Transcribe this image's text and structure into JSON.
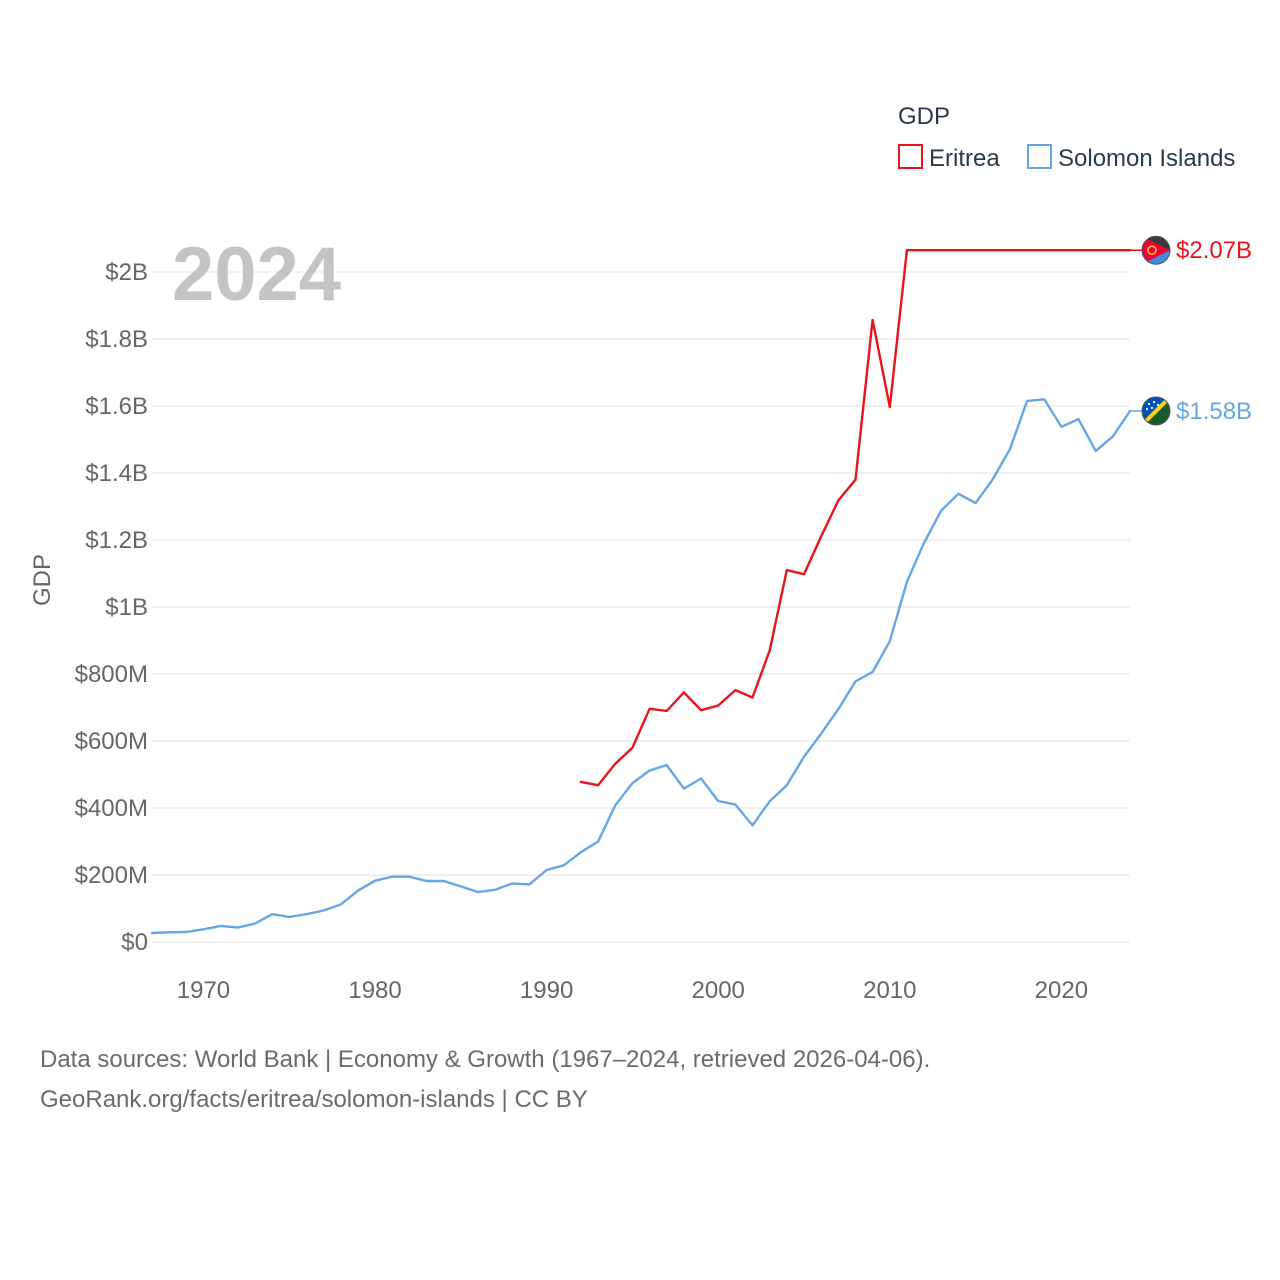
{
  "chart_data": {
    "type": "line",
    "title": "GDP",
    "year_label": "2024",
    "xlabel": "",
    "ylabel": "GDP",
    "xlim": [
      1967,
      2024
    ],
    "ylim": [
      0,
      2000000000
    ],
    "x_ticks": [
      1970,
      1980,
      1990,
      2000,
      2010,
      2020
    ],
    "x_tick_labels": [
      "1970",
      "1980",
      "1990",
      "2000",
      "2010",
      "2020"
    ],
    "y_ticks": [
      0,
      200000000,
      400000000,
      600000000,
      800000000,
      1000000000,
      1200000000,
      1400000000,
      1600000000,
      1800000000,
      2000000000
    ],
    "y_tick_labels": [
      "$0",
      "$200M",
      "$400M",
      "$600M",
      "$800M",
      "$1B",
      "$1.2B",
      "$1.4B",
      "$1.6B",
      "$1.8B",
      "$2B"
    ],
    "grid": true,
    "legend_position": "top-right",
    "series": [
      {
        "name": "Eritrea",
        "color": "#e8141b",
        "end_label": "$2.07B",
        "flag_icon": "eritrea-flag-icon",
        "x": [
          1992,
          1993,
          1994,
          1995,
          1996,
          1997,
          1998,
          1999,
          2000,
          2001,
          2002,
          2003,
          2004,
          2005,
          2006,
          2007,
          2008,
          2009,
          2010,
          2011,
          2024
        ],
        "values": [
          478000000,
          468000000,
          532000000,
          580000000,
          696000000,
          690000000,
          745000000,
          692000000,
          706000000,
          752000000,
          730000000,
          870000000,
          1110000000,
          1098000000,
          1211000000,
          1318000000,
          1380000000,
          1857000000,
          1597000000,
          2065000000,
          2065000000
        ]
      },
      {
        "name": "Solomon Islands",
        "color": "#66a6e2",
        "end_label": "$1.58B",
        "flag_icon": "solomon-islands-flag-icon",
        "x": [
          1967,
          1968,
          1969,
          1970,
          1971,
          1972,
          1973,
          1974,
          1975,
          1976,
          1977,
          1978,
          1979,
          1980,
          1981,
          1982,
          1983,
          1984,
          1985,
          1986,
          1987,
          1988,
          1989,
          1990,
          1991,
          1992,
          1993,
          1994,
          1995,
          1996,
          1997,
          1998,
          1999,
          2000,
          2001,
          2002,
          2003,
          2004,
          2005,
          2006,
          2007,
          2008,
          2009,
          2010,
          2011,
          2012,
          2013,
          2014,
          2015,
          2016,
          2017,
          2018,
          2019,
          2020,
          2021,
          2022,
          2023,
          2024
        ],
        "values": [
          27000000,
          29000000,
          30000000,
          38000000,
          48000000,
          43000000,
          55000000,
          83000000,
          75000000,
          83000000,
          94000000,
          112000000,
          153000000,
          183000000,
          195000000,
          195000000,
          182000000,
          182000000,
          166000000,
          149000000,
          156000000,
          175000000,
          172000000,
          215000000,
          229000000,
          268000000,
          300000000,
          408000000,
          474000000,
          512000000,
          528000000,
          458000000,
          488000000,
          421000000,
          410000000,
          348000000,
          420000000,
          468000000,
          553000000,
          622000000,
          695000000,
          778000000,
          806000000,
          898000000,
          1075000000,
          1192000000,
          1288000000,
          1338000000,
          1310000000,
          1381000000,
          1471000000,
          1615000000,
          1620000000,
          1538000000,
          1561000000,
          1466000000,
          1509000000,
          1585000000
        ]
      }
    ]
  },
  "footer": {
    "line1": "Data sources: World Bank | Economy & Growth (1967–2024, retrieved 2026-04-06).",
    "line2": "GeoRank.org/facts/eritrea/solomon-islands | CC BY"
  }
}
